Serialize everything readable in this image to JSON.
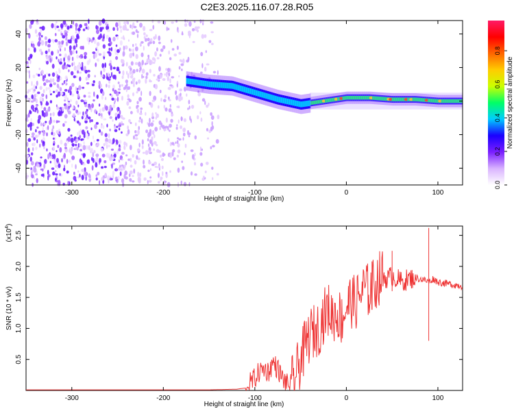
{
  "title": "C2E3.2025.116.07.28.R05",
  "chart_data": [
    {
      "type": "heatmap",
      "xlabel": "Height of straight line (km)",
      "ylabel": "Frequency (Hz)",
      "xlim": [
        -350,
        127
      ],
      "ylim": [
        -50,
        48
      ],
      "xticks": [
        -300,
        -200,
        -100,
        0,
        100
      ],
      "yticks": [
        -40,
        -20,
        0,
        20,
        40
      ],
      "colorbar": {
        "label": "Normalized spectral amplitude",
        "range": [
          0.0,
          0.98
        ],
        "ticks": [
          "0.0",
          "0.2",
          "0.4",
          "0.6",
          "0.8"
        ],
        "colormap": [
          "#ffffff",
          "#d9b3ff",
          "#7a1fff",
          "#1a00ff",
          "#00ccff",
          "#00ff66",
          "#ccff00",
          "#ffcc00",
          "#ff6600",
          "#ff0000",
          "#ff1a66"
        ]
      },
      "noise_region_x": [
        -350,
        -140
      ],
      "signal_ridge": {
        "x": [
          -175,
          -150,
          -125,
          -100,
          -75,
          -50,
          -25,
          0,
          25,
          50,
          75,
          100,
          127
        ],
        "frequency": [
          12,
          10,
          9,
          5,
          1,
          -2,
          0,
          2,
          2,
          1,
          1,
          0,
          0
        ]
      }
    },
    {
      "type": "line",
      "xlabel": "Height of straight line (km)",
      "ylabel": "SNR (10 * v/v)",
      "y_multiplier": "(x10",
      "y_multiplier_exp": "4",
      "xlim": [
        -350,
        127
      ],
      "ylim": [
        0,
        2.65
      ],
      "xticks": [
        -300,
        -200,
        -100,
        0,
        100
      ],
      "yticks": [
        "0.5",
        "1.0",
        "1.5",
        "2.0",
        "2.5"
      ],
      "series": [
        {
          "color": "#ee3333",
          "x": [
            -350,
            -300,
            -250,
            -200,
            -150,
            -120,
            -110,
            -100,
            -95,
            -90,
            -85,
            -80,
            -75,
            -70,
            -65,
            -60,
            -55,
            -50,
            -45,
            -40,
            -35,
            -30,
            -25,
            -20,
            -15,
            -10,
            -5,
            0,
            5,
            10,
            15,
            20,
            25,
            30,
            35,
            40,
            45,
            50,
            55,
            60,
            65,
            70,
            75,
            80,
            85,
            90,
            95,
            100,
            110,
            120,
            127
          ],
          "values": [
            0.01,
            0.01,
            0.01,
            0.01,
            0.01,
            0.02,
            0.04,
            0.2,
            0.3,
            0.35,
            0.3,
            0.45,
            0.35,
            0.2,
            0.1,
            0.1,
            0.25,
            0.5,
            0.7,
            0.9,
            0.95,
            1.0,
            1.2,
            1.3,
            1.2,
            1.25,
            1.15,
            1.35,
            1.45,
            1.4,
            1.55,
            1.65,
            1.6,
            1.7,
            1.8,
            1.85,
            1.8,
            1.85,
            1.8,
            1.75,
            1.78,
            1.8,
            1.82,
            1.8,
            1.78,
            1.75,
            1.8,
            1.75,
            1.72,
            1.7,
            1.68
          ]
        }
      ],
      "spikes": [
        {
          "x": 90,
          "values": [
            0.8,
            2.62
          ]
        },
        {
          "x": 50,
          "values": [
            1.6,
            2.25
          ]
        },
        {
          "x": 28,
          "values": [
            1.3,
            2.08
          ]
        }
      ]
    }
  ]
}
